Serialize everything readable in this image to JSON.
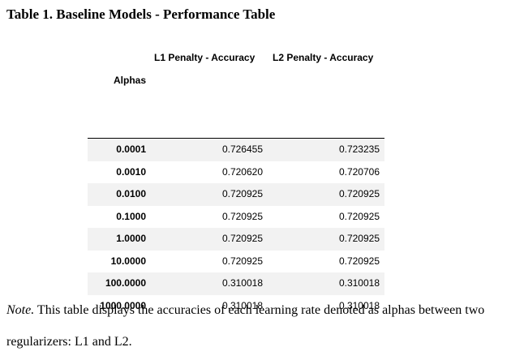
{
  "document": {
    "title": "Table 1. Baseline Models - Performance Table",
    "note_label": "Note.",
    "note_line1": " This table displays the accuracies of each learning rate denoted as alphas between two",
    "note_line2": "regularizers: L1 and L2."
  },
  "table": {
    "columns": [
      "L1 Penalty - Accuracy",
      "L2 Penalty - Accuracy"
    ],
    "index_name": "Alphas",
    "rows": [
      {
        "alpha": "0.0001",
        "l1": "0.726455",
        "l2": "0.723235"
      },
      {
        "alpha": "0.0010",
        "l1": "0.720620",
        "l2": "0.720706"
      },
      {
        "alpha": "0.0100",
        "l1": "0.720925",
        "l2": "0.720925"
      },
      {
        "alpha": "0.1000",
        "l1": "0.720925",
        "l2": "0.720925"
      },
      {
        "alpha": "1.0000",
        "l1": "0.720925",
        "l2": "0.720925"
      },
      {
        "alpha": "10.0000",
        "l1": "0.720925",
        "l2": "0.720925"
      },
      {
        "alpha": "100.0000",
        "l1": "0.310018",
        "l2": "0.310018"
      },
      {
        "alpha": "1000.0000",
        "l1": "0.310018",
        "l2": "0.310018"
      }
    ]
  }
}
